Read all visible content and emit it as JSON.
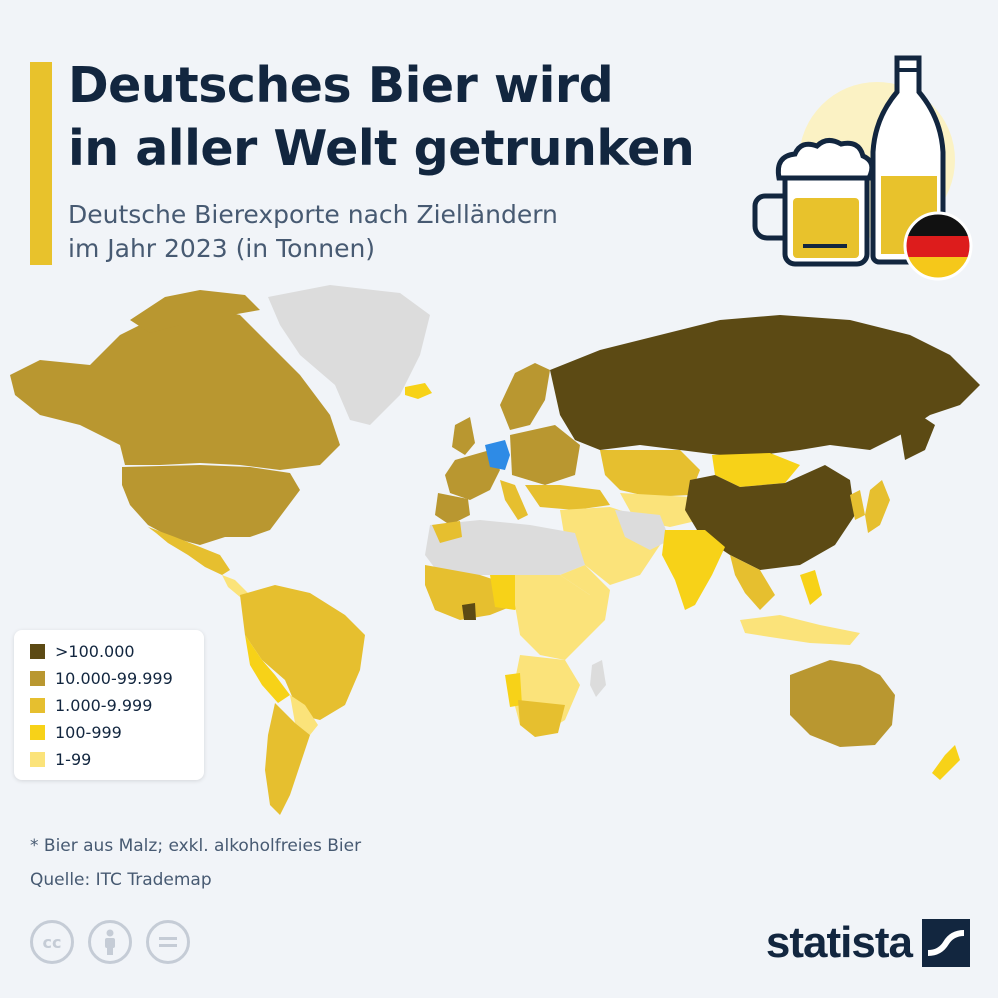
{
  "header": {
    "title_line1": "Deutsches Bier wird",
    "title_line2": "in aller Welt getrunken",
    "subtitle_line1": "Deutsche Bierexporte nach Zielländern",
    "subtitle_line2": "im Jahr 2023 (in Tonnen)"
  },
  "hero": {
    "icons": [
      "beer-mug-icon",
      "beer-bottle-icon",
      "german-flag-icon"
    ]
  },
  "colors": {
    "accent": "#e8c22c",
    "highlight_germany": "#2e8be6",
    "no_data": "#dcdcdc",
    "text_dark": "#12263f"
  },
  "legend": {
    "items": [
      {
        "label": ">100.000",
        "color": "#5c4a14"
      },
      {
        "label": "10.000-99.999",
        "color": "#b99730"
      },
      {
        "label": "1.000-9.999",
        "color": "#e6bf2f"
      },
      {
        "label": "100-999",
        "color": "#f7d218"
      },
      {
        "label": "1-99",
        "color": "#fbe37a"
      }
    ]
  },
  "footer": {
    "note": "* Bier aus Malz; exkl. alkoholfreies Bier",
    "source": "Quelle: ITC Trademap",
    "license_icons": [
      "cc-icon",
      "attribution-icon",
      "no-derivatives-icon"
    ],
    "brand": "statista"
  }
}
